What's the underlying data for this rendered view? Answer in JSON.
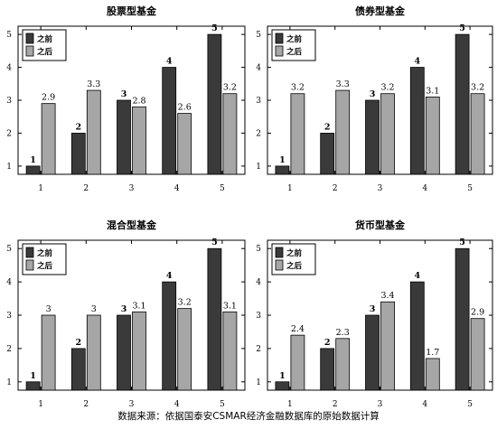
{
  "source_note": "数据来源：依据国泰安CSMAR经济金融数据库的原始数据计算",
  "chart_data": [
    {
      "type": "bar",
      "title": "股票型基金",
      "categories": [
        "1",
        "2",
        "3",
        "4",
        "5"
      ],
      "series": [
        {
          "name": "之前",
          "values": [
            1,
            2,
            3,
            4,
            5
          ],
          "color": "#3a3a3a"
        },
        {
          "name": "之后",
          "values": [
            2.9,
            3.3,
            2.8,
            2.6,
            3.2
          ],
          "color": "#a6a6a6"
        }
      ],
      "value_labels": [
        [
          "1",
          "2",
          "3",
          "4",
          "5"
        ],
        [
          "2.9",
          "3.3",
          "2.8",
          "2.6",
          "3.2"
        ]
      ],
      "ylim": [
        0.75,
        5.25
      ],
      "yticks": [
        1,
        2,
        3,
        4,
        5
      ],
      "legend": "top-left"
    },
    {
      "type": "bar",
      "title": "债券型基金",
      "categories": [
        "1",
        "2",
        "3",
        "4",
        "5"
      ],
      "series": [
        {
          "name": "之前",
          "values": [
            1,
            2,
            3,
            4,
            5
          ],
          "color": "#3a3a3a"
        },
        {
          "name": "之后",
          "values": [
            3.2,
            3.3,
            3.2,
            3.1,
            3.2
          ],
          "color": "#a6a6a6"
        }
      ],
      "value_labels": [
        [
          "1",
          "2",
          "3",
          "4",
          "5"
        ],
        [
          "3.2",
          "3.3",
          "3.2",
          "3.1",
          "3.2"
        ]
      ],
      "ylim": [
        0.75,
        5.25
      ],
      "yticks": [
        1,
        2,
        3,
        4,
        5
      ],
      "legend": "top-left"
    },
    {
      "type": "bar",
      "title": "混合型基金",
      "categories": [
        "1",
        "2",
        "3",
        "4",
        "5"
      ],
      "series": [
        {
          "name": "之前",
          "values": [
            1,
            2,
            3,
            4,
            5
          ],
          "color": "#3a3a3a"
        },
        {
          "name": "之后",
          "values": [
            3,
            3,
            3.1,
            3.2,
            3.1
          ],
          "color": "#a6a6a6"
        }
      ],
      "value_labels": [
        [
          "1",
          "2",
          "3",
          "4",
          "5"
        ],
        [
          "3",
          "3",
          "3.1",
          "3.2",
          "3.1"
        ]
      ],
      "ylim": [
        0.75,
        5.25
      ],
      "yticks": [
        1,
        2,
        3,
        4,
        5
      ],
      "legend": "top-left"
    },
    {
      "type": "bar",
      "title": "货币型基金",
      "categories": [
        "1",
        "2",
        "3",
        "4",
        "5"
      ],
      "series": [
        {
          "name": "之前",
          "values": [
            1,
            2,
            3,
            4,
            5
          ],
          "color": "#3a3a3a"
        },
        {
          "name": "之后",
          "values": [
            2.4,
            2.3,
            3.4,
            1.7,
            2.9
          ],
          "color": "#a6a6a6"
        }
      ],
      "value_labels": [
        [
          "1",
          "2",
          "3",
          "4",
          "5"
        ],
        [
          "2.4",
          "2.3",
          "3.4",
          "1.7",
          "2.9"
        ]
      ],
      "ylim": [
        0.75,
        5.25
      ],
      "yticks": [
        1,
        2,
        3,
        4,
        5
      ],
      "legend": "top-left"
    }
  ]
}
